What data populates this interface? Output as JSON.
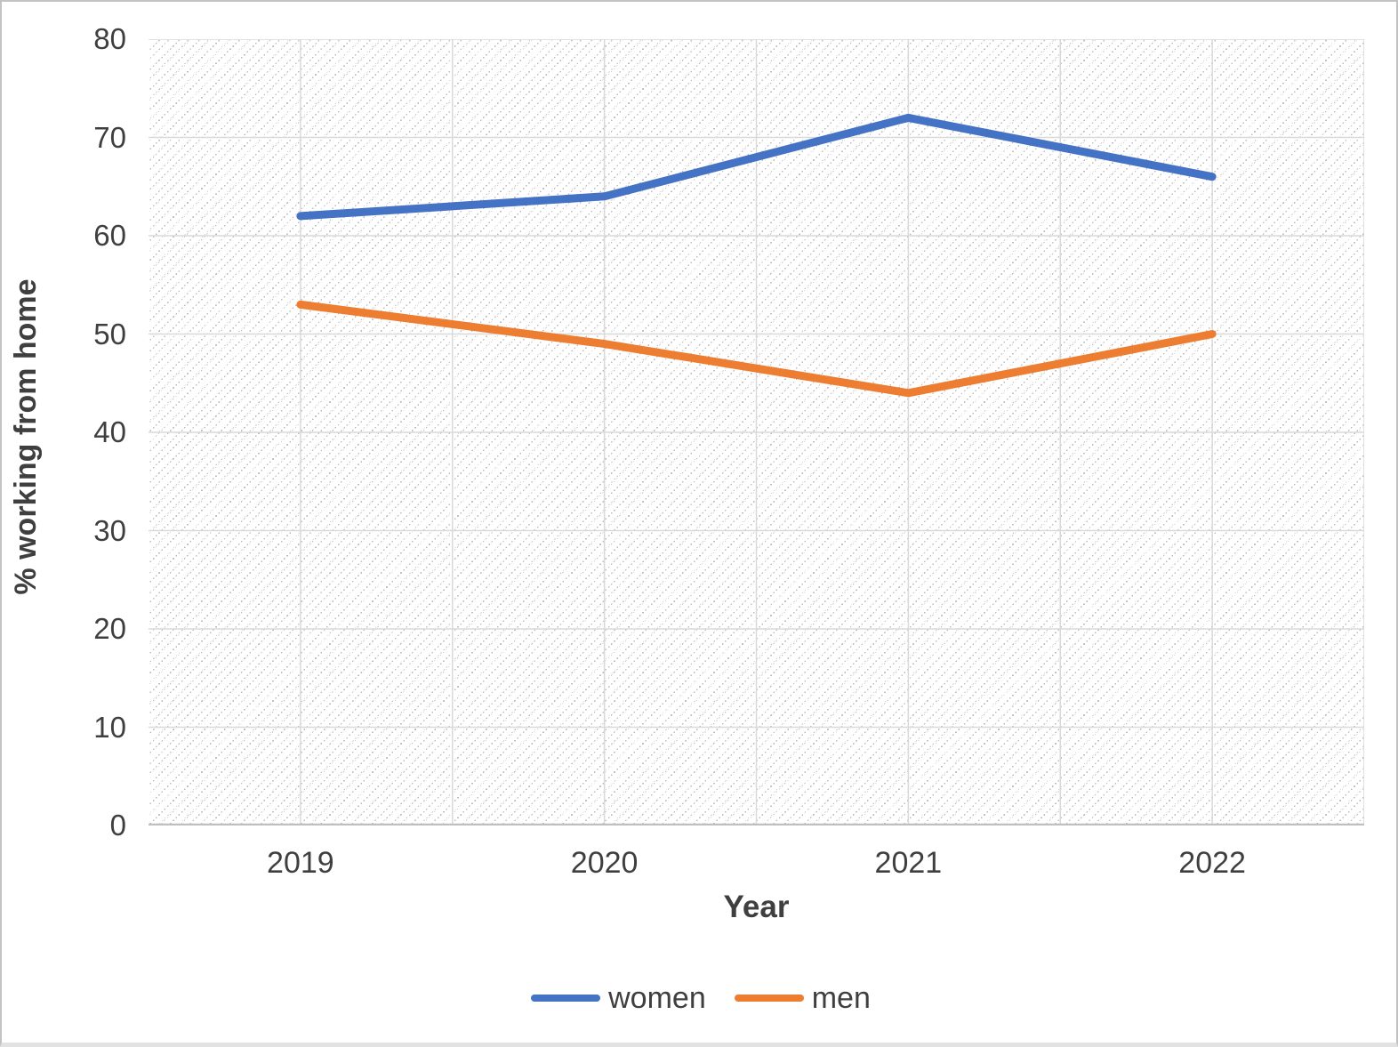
{
  "chart_data": {
    "type": "line",
    "title": "",
    "xlabel": "Year",
    "ylabel": "% working from home",
    "categories": [
      "2019",
      "2020",
      "2021",
      "2022"
    ],
    "series": [
      {
        "name": "women",
        "color": "#4472C4",
        "values": [
          62,
          64,
          72,
          66
        ]
      },
      {
        "name": "men",
        "color": "#ED7D31",
        "values": [
          53,
          49,
          44,
          50
        ]
      }
    ],
    "ylim": [
      0,
      80
    ],
    "ytick_step": 10,
    "yticks": [
      0,
      10,
      20,
      30,
      40,
      50,
      60,
      70,
      80
    ],
    "grid": "on",
    "legend_position": "bottom",
    "plot_background": "light diagonal dotted hatch"
  },
  "colors": {
    "gridline": "#d9d9d9",
    "axis_line": "#bfbfbf",
    "text": "#3f3f3f",
    "hatch_dot": "#bdbdbd"
  }
}
